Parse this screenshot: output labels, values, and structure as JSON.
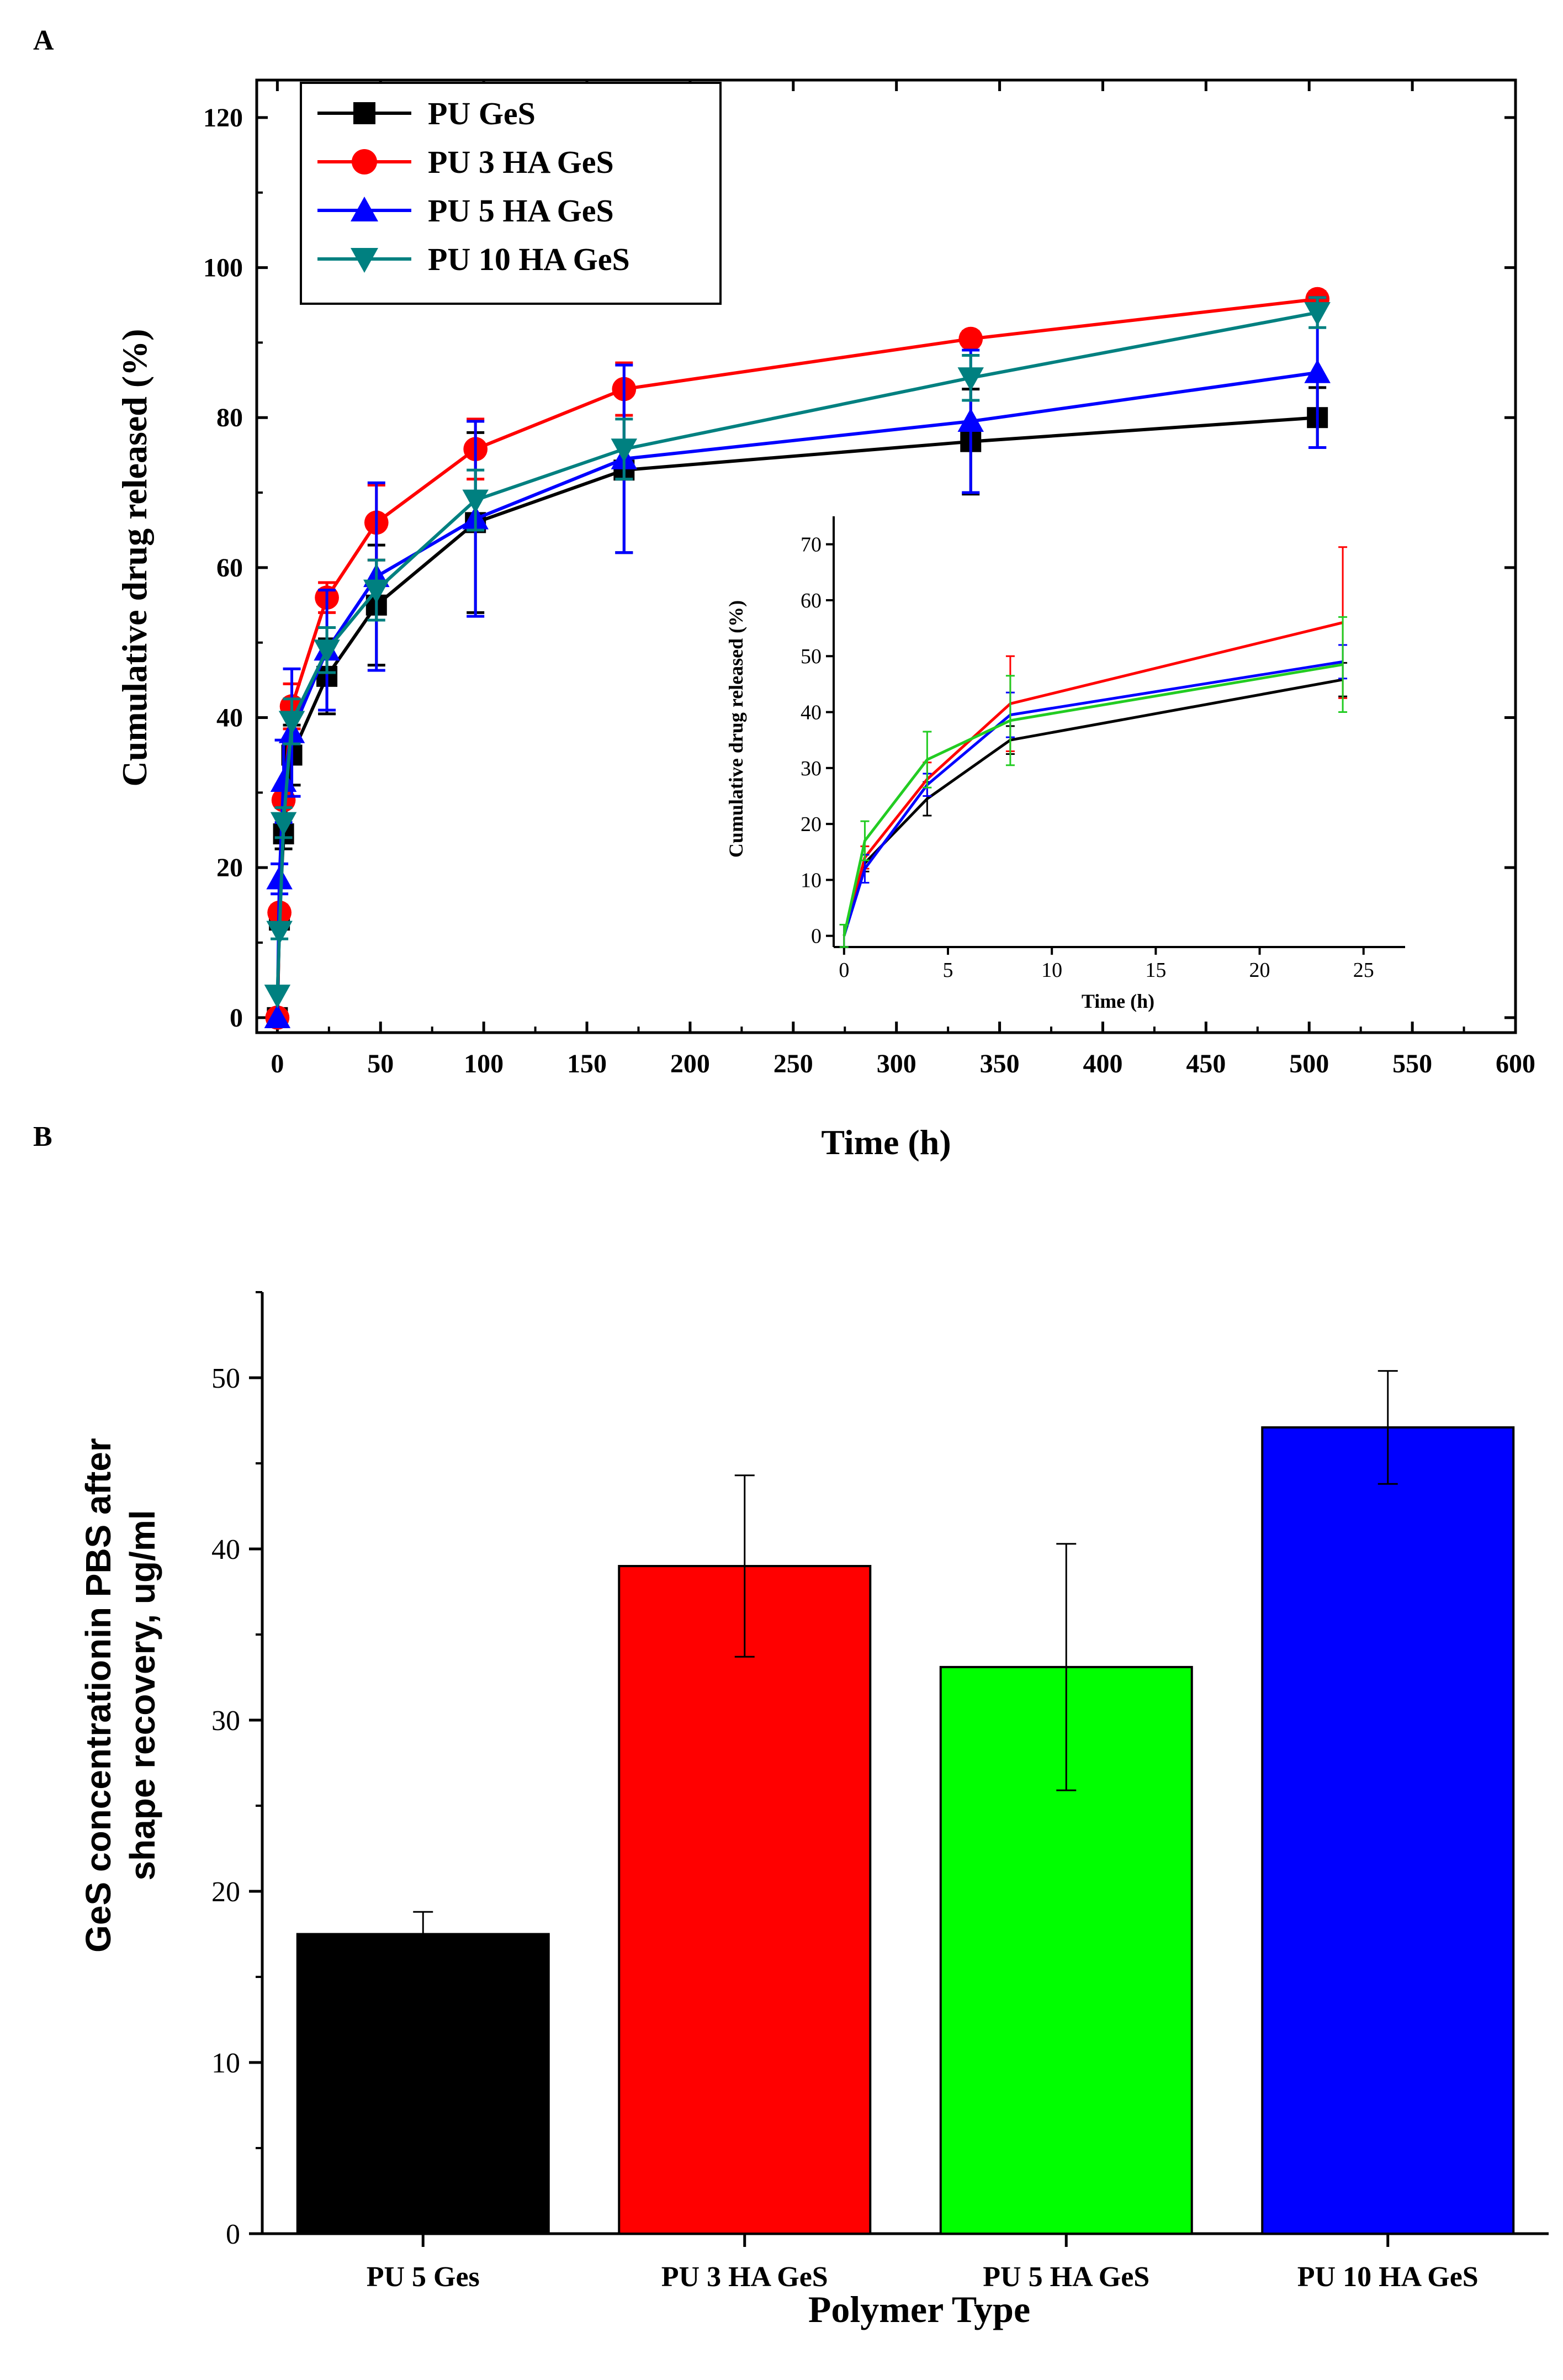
{
  "panels": {
    "a_label": "A",
    "b_label": "B"
  },
  "chart_data": [
    {
      "type": "line",
      "title": "",
      "xlabel": "Time (h)",
      "ylabel": "Cumulative drug released (%)",
      "xlim": [
        -10,
        600
      ],
      "ylim": [
        -2,
        125
      ],
      "xticks": [
        0,
        50,
        100,
        150,
        200,
        250,
        300,
        350,
        400,
        450,
        500,
        550,
        600
      ],
      "yticks": [
        0,
        20,
        40,
        60,
        80,
        100,
        120
      ],
      "legend_position": "top-left",
      "series": [
        {
          "name": "PU GeS",
          "color": "#000000",
          "marker": "square",
          "x": [
            0,
            1,
            3,
            7,
            24,
            48,
            96,
            168,
            336,
            504
          ],
          "y": [
            0,
            13,
            24.5,
            35,
            45.5,
            55,
            66,
            73,
            76.8,
            80
          ],
          "err": [
            0,
            1,
            2,
            4,
            5,
            8,
            12,
            11,
            7,
            4
          ]
        },
        {
          "name": "PU 3 HA GeS",
          "color": "#ff0000",
          "marker": "circle",
          "x": [
            0,
            1,
            3,
            7,
            24,
            48,
            96,
            168,
            336,
            504
          ],
          "y": [
            0,
            14,
            29,
            41.5,
            56,
            66,
            75.8,
            83.8,
            90.5,
            95.8
          ],
          "err": [
            0,
            1,
            2,
            3,
            2,
            5,
            4,
            3.5,
            1,
            1
          ]
        },
        {
          "name": "PU 5 HA GeS",
          "color": "#0000ff",
          "marker": "triangle-up",
          "x": [
            0,
            1,
            3,
            7,
            24,
            48,
            96,
            168,
            336,
            504
          ],
          "y": [
            0,
            18.5,
            31.5,
            38,
            49,
            58.8,
            66.5,
            74.5,
            79.5,
            86
          ],
          "err": [
            0,
            2,
            5.5,
            8.5,
            8,
            12.5,
            13,
            12.5,
            9.5,
            10
          ]
        },
        {
          "name": "PU 10 HA GeS",
          "color": "#008080",
          "marker": "triangle-down",
          "x": [
            0,
            1,
            3,
            7,
            24,
            48,
            96,
            168,
            336,
            504
          ],
          "y": [
            3,
            11.5,
            26,
            39.5,
            49,
            57,
            69,
            75.8,
            85.3,
            94
          ],
          "err": [
            0,
            1,
            2,
            3,
            3,
            4,
            4,
            4,
            3,
            2
          ]
        }
      ],
      "inset": {
        "type": "line",
        "xlabel": "Time (h)",
        "ylabel": "Cumulative drug released (%)",
        "xlim": [
          -0.5,
          27
        ],
        "ylim": [
          -2,
          75
        ],
        "xticks": [
          0,
          5,
          10,
          15,
          20,
          25
        ],
        "yticks": [
          0,
          10,
          20,
          30,
          40,
          50,
          60,
          70
        ],
        "series": [
          {
            "name": "PU GeS",
            "color": "#000000",
            "x": [
              0,
              1,
              4,
              8,
              24
            ],
            "y": [
              0,
              13,
              24.5,
              35,
              45.8
            ],
            "err": [
              2,
              1.5,
              3,
              2.5,
              3
            ]
          },
          {
            "name": "PU 3 HA GeS",
            "color": "#ff0000",
            "x": [
              0,
              1,
              4,
              8,
              24
            ],
            "y": [
              0,
              14,
              28,
              41.5,
              56
            ],
            "err": [
              2,
              2,
              3,
              8.5,
              13.5
            ]
          },
          {
            "name": "PU 5 HA GeS",
            "color": "#0000ff",
            "x": [
              0,
              1,
              4,
              8,
              24
            ],
            "y": [
              0,
              12,
              27,
              39.5,
              49
            ],
            "err": [
              2,
              2.5,
              2,
              4,
              3
            ]
          },
          {
            "name": "PU 10 HA GeS",
            "color": "#22cc22",
            "x": [
              0,
              1,
              4,
              8,
              24
            ],
            "y": [
              0,
              17,
              31.5,
              38.5,
              48.5
            ],
            "err": [
              2,
              3.5,
              5,
              8,
              8.5
            ]
          }
        ]
      }
    },
    {
      "type": "bar",
      "title": "",
      "xlabel": "Polymer Type",
      "ylabel": "GeS concentrationin PBS after shape recovery, ug/ml",
      "ylabel_lines": [
        "GeS concentrationin PBS after",
        "shape recovery, ug/ml"
      ],
      "ylim": [
        0,
        55
      ],
      "yticks": [
        0,
        10,
        20,
        30,
        40,
        50
      ],
      "categories": [
        "PU 5 Ges",
        "PU 3 HA GeS",
        "PU 5 HA GeS",
        "PU 10 HA GeS"
      ],
      "values": [
        17.5,
        39,
        33.1,
        47.1
      ],
      "errors": [
        1.3,
        5.3,
        7.2,
        3.3
      ],
      "colors": [
        "#000000",
        "#ff0000",
        "#00ff00",
        "#0000ff"
      ]
    }
  ]
}
